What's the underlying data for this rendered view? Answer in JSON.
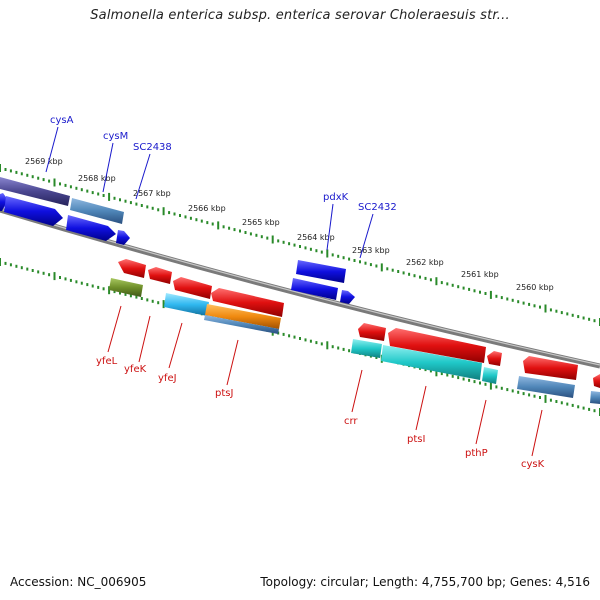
{
  "title": "Salmonella enterica subsp. enterica serovar Choleraesuis str...",
  "footer": {
    "accession": "Accession: NC_006905",
    "summary": "Topology: circular; Length: 4,755,700 bp; Genes: 4,516"
  },
  "ticks": [
    "2569 kbp",
    "2568 kbp",
    "2567 kbp",
    "2566 kbp",
    "2565 kbp",
    "2564 kbp",
    "2563 kbp",
    "2562 kbp",
    "2561 kbp",
    "2560 kbp"
  ],
  "genes_forward": [
    "cysA",
    "cysM",
    "SC2438",
    "pdxK",
    "SC2432"
  ],
  "genes_reverse": [
    "yfeL",
    "yfeK",
    "yfeJ",
    "ptsJ",
    "crr",
    "ptsI",
    "pthP",
    "cysK"
  ],
  "colors": {
    "forward_label": "#1a1acc",
    "reverse_label": "#cc1111",
    "backbone": "#8a8a8a",
    "tick": "#2a8a2a",
    "blue": "#1010e0",
    "red": "#e01010",
    "cyan": "#20c8c8",
    "steel": "#4f86b8",
    "indigo": "#4a4690",
    "olive": "#6f8f2a",
    "orange": "#f08a10",
    "skyblue": "#30b8f0"
  }
}
